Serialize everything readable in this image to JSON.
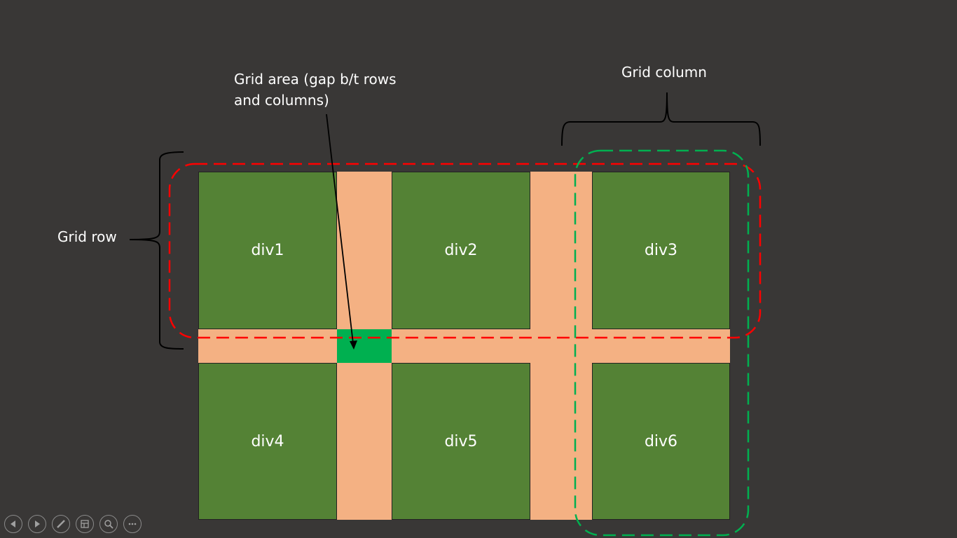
{
  "cells": [
    {
      "label": "div1"
    },
    {
      "label": "div2"
    },
    {
      "label": "div3"
    },
    {
      "label": "div4"
    },
    {
      "label": "div5"
    },
    {
      "label": "div6"
    }
  ],
  "annotations": {
    "grid_area": "Grid area (gap b/t rows and columns)",
    "grid_column": "Grid column",
    "grid_row": "Grid row"
  },
  "colors": {
    "background": "#393736",
    "cell": "#548235",
    "gap": "#f4b183",
    "gap_highlight": "#00b050",
    "row_outline": "#ff0000",
    "column_outline": "#00b050"
  },
  "controls": [
    {
      "icon": "previous-icon"
    },
    {
      "icon": "next-icon"
    },
    {
      "icon": "pen-icon"
    },
    {
      "icon": "slides-grid-icon"
    },
    {
      "icon": "zoom-icon"
    },
    {
      "icon": "more-icon"
    }
  ]
}
